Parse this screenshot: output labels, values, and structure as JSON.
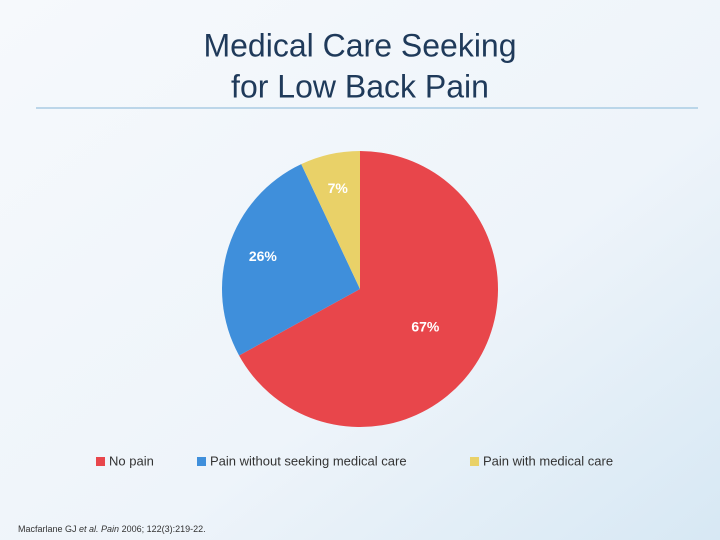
{
  "chart_data": {
    "type": "pie",
    "title": [
      "Medical Care Seeking",
      "for Low Back Pain"
    ],
    "categories": [
      "No pain",
      "Pain without seeking medical care",
      "Pain with medical care"
    ],
    "values": [
      67,
      26,
      7
    ],
    "value_labels": [
      "67%",
      "26%",
      "7%"
    ],
    "colors": [
      "#e8464b",
      "#3f8fdb",
      "#e9d168"
    ],
    "legend": "bottom"
  },
  "citation": [
    "Macfarlane GJ ",
    "et al. Pain",
    " 2006; 122(3):219-22."
  ]
}
